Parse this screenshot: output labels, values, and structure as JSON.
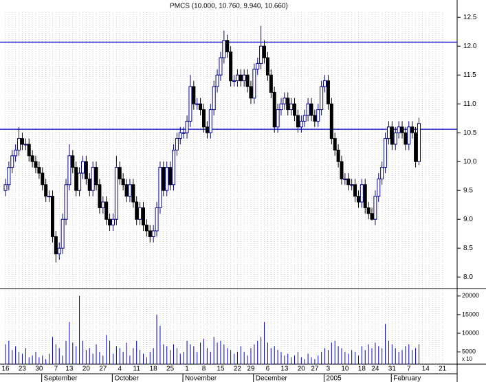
{
  "chart_data": {
    "type": "candlestick",
    "title": "PMCS (10.000, 10.760, 9.940, 10.660)",
    "categories": [
      "16",
      null,
      null,
      null,
      null,
      "23",
      null,
      null,
      null,
      null,
      "30",
      null,
      null,
      null,
      null,
      "7",
      null,
      null,
      null,
      "13",
      null,
      null,
      null,
      null,
      "20",
      null,
      null,
      null,
      null,
      "27",
      null,
      null,
      null,
      null,
      "4",
      null,
      null,
      null,
      null,
      "11",
      null,
      null,
      null,
      null,
      "18",
      null,
      null,
      null,
      null,
      "25",
      null,
      null,
      null,
      null,
      "1",
      null,
      null,
      null,
      null,
      "8",
      null,
      null,
      null,
      null,
      "15",
      null,
      null,
      null,
      null,
      "22",
      null,
      null,
      null,
      "29",
      null,
      null,
      null,
      null,
      "6",
      null,
      null,
      null,
      null,
      "13",
      null,
      null,
      null,
      null,
      "20",
      null,
      null,
      null,
      "27",
      null,
      null,
      null,
      "3",
      null,
      null,
      null,
      null,
      "10",
      null,
      null,
      null,
      null,
      "18",
      null,
      null,
      null,
      "24",
      null,
      null,
      null,
      null,
      "31",
      null,
      null,
      null,
      null,
      "7",
      null,
      null,
      null,
      null,
      "14",
      null,
      null,
      null,
      null,
      "21"
    ],
    "months": [
      null,
      null,
      null,
      null,
      null,
      null,
      null,
      null,
      null,
      null,
      null,
      null,
      "September",
      null,
      null,
      null,
      null,
      null,
      null,
      null,
      null,
      null,
      null,
      null,
      null,
      null,
      null,
      null,
      null,
      null,
      null,
      null,
      null,
      "October",
      null,
      null,
      null,
      null,
      null,
      null,
      null,
      null,
      null,
      null,
      null,
      null,
      null,
      null,
      null,
      null,
      null,
      null,
      null,
      null,
      "November",
      null,
      null,
      null,
      null,
      null,
      null,
      null,
      null,
      null,
      null,
      null,
      null,
      null,
      null,
      null,
      null,
      null,
      null,
      null,
      null,
      "December",
      null,
      null,
      null,
      null,
      null,
      null,
      null,
      null,
      null,
      null,
      null,
      null,
      null,
      null,
      null,
      null,
      null,
      null,
      null,
      null,
      "2005",
      null,
      null,
      null,
      null,
      null,
      null,
      null,
      null,
      null,
      null,
      null,
      null,
      null,
      null,
      null,
      null,
      null,
      null,
      null,
      "February",
      null,
      null,
      null,
      null,
      null,
      null,
      null,
      null,
      null,
      null,
      null,
      null,
      null,
      null
    ],
    "open": [
      9.5,
      9.6,
      9.9,
      10.1,
      10.2,
      10.4,
      10.3,
      10.3,
      10.1,
      10.0,
      9.9,
      9.8,
      9.6,
      9.4,
      9.4,
      8.7,
      8.4,
      8.5,
      9.0,
      9.6,
      10.1,
      9.9,
      9.5,
      9.8,
      10.0,
      9.7,
      9.5,
      9.9,
      9.6,
      9.2,
      9.3,
      9.0,
      8.9,
      9.0,
      9.9,
      9.7,
      9.6,
      9.4,
      9.6,
      9.3,
      9.0,
      9.2,
      8.9,
      8.8,
      8.7,
      8.8,
      9.2,
      9.9,
      9.5,
      9.9,
      9.6,
      10.2,
      10.4,
      10.5,
      10.5,
      10.7,
      11.3,
      11.0,
      11.0,
      10.9,
      10.6,
      10.5,
      10.9,
      11.3,
      11.5,
      11.8,
      12.1,
      11.9,
      11.4,
      11.4,
      11.5,
      11.4,
      11.5,
      11.3,
      11.1,
      11.6,
      11.7,
      12.0,
      11.8,
      11.5,
      11.2,
      10.6,
      10.9,
      11.0,
      11.1,
      10.9,
      11.0,
      10.8,
      10.6,
      10.7,
      10.8,
      11.0,
      10.8,
      10.7,
      10.9,
      11.3,
      11.4,
      11.0,
      10.4,
      10.2,
      10.0,
      9.7,
      9.7,
      9.6,
      9.6,
      9.4,
      9.3,
      9.6,
      9.2,
      9.1,
      9.0,
      9.4,
      9.7,
      9.9,
      10.4,
      10.6,
      10.3,
      10.5,
      10.6,
      10.5,
      10.3,
      10.6,
      10.5,
      10.0,
      null,
      null,
      null,
      null,
      null,
      null,
      null
    ],
    "high": [
      9.7,
      10.0,
      10.2,
      10.3,
      10.6,
      10.5,
      10.4,
      10.4,
      10.2,
      10.1,
      10.0,
      9.9,
      9.7,
      9.5,
      9.5,
      8.8,
      8.6,
      9.1,
      9.7,
      10.3,
      10.2,
      10.0,
      9.9,
      10.1,
      10.1,
      9.8,
      10.0,
      10.0,
      9.7,
      9.4,
      9.4,
      9.1,
      9.1,
      10.1,
      10.0,
      9.8,
      9.7,
      9.7,
      9.7,
      9.4,
      9.3,
      9.3,
      9.0,
      8.9,
      8.9,
      9.3,
      10.0,
      10.0,
      10.0,
      10.0,
      10.3,
      10.5,
      10.6,
      10.6,
      10.8,
      11.5,
      11.4,
      11.1,
      11.1,
      11.0,
      10.7,
      11.0,
      11.4,
      11.6,
      11.9,
      12.27,
      12.2,
      12.0,
      11.5,
      11.6,
      11.6,
      11.6,
      11.6,
      11.4,
      11.7,
      11.8,
      12.35,
      12.1,
      11.9,
      11.6,
      11.3,
      11.0,
      11.1,
      11.2,
      11.2,
      11.1,
      11.1,
      10.9,
      10.8,
      10.9,
      11.1,
      11.1,
      10.9,
      11.0,
      11.4,
      11.5,
      11.5,
      11.1,
      10.5,
      10.3,
      10.1,
      9.8,
      9.8,
      9.7,
      9.7,
      9.5,
      9.7,
      9.7,
      9.3,
      9.2,
      9.5,
      9.8,
      10.0,
      10.5,
      10.7,
      10.7,
      10.6,
      10.7,
      10.7,
      10.6,
      10.7,
      10.7,
      10.6,
      10.76,
      null,
      null,
      null,
      null,
      null,
      null,
      null
    ],
    "low": [
      9.4,
      9.5,
      9.8,
      10.0,
      10.1,
      10.2,
      10.2,
      10.0,
      9.9,
      9.8,
      9.7,
      9.5,
      9.3,
      9.3,
      8.6,
      8.25,
      8.3,
      8.4,
      8.9,
      9.5,
      9.8,
      9.4,
      9.4,
      9.7,
      9.6,
      9.4,
      9.4,
      9.5,
      9.1,
      9.1,
      8.9,
      8.8,
      8.8,
      8.9,
      9.6,
      9.5,
      9.3,
      9.3,
      9.2,
      8.9,
      8.9,
      8.8,
      8.7,
      8.6,
      8.6,
      8.7,
      9.1,
      9.4,
      9.4,
      9.5,
      9.5,
      10.1,
      10.3,
      10.4,
      10.4,
      10.6,
      10.9,
      10.9,
      10.8,
      10.5,
      10.4,
      10.4,
      10.8,
      11.2,
      11.4,
      11.7,
      11.8,
      11.3,
      11.3,
      11.3,
      11.3,
      11.3,
      11.2,
      11.0,
      11.0,
      11.5,
      11.6,
      11.7,
      11.4,
      11.1,
      10.5,
      10.5,
      10.8,
      10.9,
      10.8,
      10.8,
      10.7,
      10.5,
      10.5,
      10.6,
      10.7,
      10.7,
      10.6,
      10.6,
      10.8,
      11.2,
      10.9,
      10.3,
      10.1,
      9.9,
      9.6,
      9.6,
      9.5,
      9.5,
      9.3,
      9.2,
      9.2,
      9.1,
      9.0,
      8.98,
      8.9,
      9.3,
      9.6,
      9.8,
      10.3,
      10.2,
      10.2,
      10.4,
      10.4,
      10.2,
      10.2,
      10.4,
      9.9,
      9.94,
      null,
      null,
      null,
      null,
      null,
      null,
      null
    ],
    "close": [
      9.6,
      9.9,
      10.1,
      10.2,
      10.4,
      10.3,
      10.3,
      10.1,
      10.0,
      9.9,
      9.8,
      9.6,
      9.4,
      9.4,
      8.7,
      8.4,
      8.5,
      9.0,
      9.6,
      10.1,
      9.9,
      9.5,
      9.8,
      10.0,
      9.7,
      9.5,
      9.9,
      9.6,
      9.2,
      9.3,
      9.0,
      8.9,
      9.0,
      9.9,
      9.7,
      9.6,
      9.4,
      9.6,
      9.3,
      9.0,
      9.2,
      8.9,
      8.8,
      8.7,
      8.8,
      9.2,
      9.9,
      9.5,
      9.9,
      9.6,
      10.2,
      10.4,
      10.5,
      10.5,
      10.7,
      11.3,
      11.0,
      11.0,
      10.9,
      10.6,
      10.5,
      10.9,
      11.3,
      11.5,
      11.8,
      12.1,
      11.9,
      11.4,
      11.4,
      11.5,
      11.4,
      11.5,
      11.3,
      11.1,
      11.6,
      11.7,
      12.0,
      11.8,
      11.5,
      11.2,
      10.6,
      10.9,
      11.0,
      11.1,
      10.9,
      11.0,
      10.8,
      10.6,
      10.7,
      10.8,
      11.0,
      10.8,
      10.7,
      10.9,
      11.3,
      11.4,
      11.0,
      10.4,
      10.2,
      10.0,
      9.7,
      9.7,
      9.6,
      9.6,
      9.4,
      9.3,
      9.6,
      9.2,
      9.1,
      9.0,
      9.4,
      9.7,
      9.9,
      10.4,
      10.6,
      10.3,
      10.5,
      10.6,
      10.5,
      10.3,
      10.6,
      10.5,
      10.0,
      10.66,
      null,
      null,
      null,
      null,
      null,
      null,
      null
    ],
    "volume": [
      7000,
      8000,
      5500,
      6500,
      5000,
      4500,
      6000,
      3500,
      4000,
      5000,
      3500,
      4000,
      3000,
      4500,
      9000,
      7000,
      6000,
      4000,
      8000,
      13000,
      7500,
      6500,
      20000,
      8000,
      5500,
      6000,
      4500,
      7000,
      5000,
      4000,
      9500,
      8000,
      4500,
      6500,
      6000,
      5000,
      7500,
      4000,
      6000,
      8000,
      5500,
      4500,
      3500,
      5000,
      6000,
      15000,
      12000,
      7000,
      6500,
      5500,
      7000,
      6000,
      4500,
      5000,
      8000,
      7000,
      6500,
      5000,
      7500,
      8500,
      6000,
      5000,
      9000,
      7500,
      8000,
      7000,
      6000,
      5500,
      4500,
      5000,
      6500,
      5000,
      4000,
      6000,
      7000,
      8000,
      9000,
      13000,
      7500,
      6000,
      6500,
      5500,
      5000,
      4000,
      4500,
      3500,
      4000,
      5000,
      3500,
      3000,
      4500,
      3500,
      3000,
      4000,
      5000,
      6000,
      5500,
      7500,
      8000,
      6500,
      6000,
      5000,
      4500,
      5500,
      5000,
      4000,
      6500,
      5500,
      7000,
      6000,
      7500,
      6500,
      6000,
      12500,
      8000,
      7000,
      6000,
      5000,
      5500,
      6500,
      7000,
      5500,
      6000,
      7000,
      null,
      null,
      null,
      null,
      null,
      null,
      null
    ],
    "ylim": [
      7.8,
      12.8
    ],
    "yticks": [
      {
        "value": 8,
        "label": "8.0"
      },
      8.5,
      {
        "value": 9,
        "label": "9.0"
      },
      9.5,
      {
        "value": 10,
        "label": "10.0"
      },
      10.5,
      {
        "value": 11,
        "label": "11.0"
      },
      11.5,
      {
        "value": 12,
        "label": "12.0"
      },
      12.5
    ],
    "volume_ylim": [
      1700,
      22000
    ],
    "volume_yticks": [
      5000,
      10000,
      15000,
      20000
    ],
    "volume_unit": "x 10",
    "hlines": [
      12.07,
      10.56
    ],
    "up_color": "#ffffff",
    "down_color": "#000000",
    "outline_color": "#000080",
    "volume_color": "#0000cc",
    "hline_color": "#0000cc",
    "grid": true
  }
}
